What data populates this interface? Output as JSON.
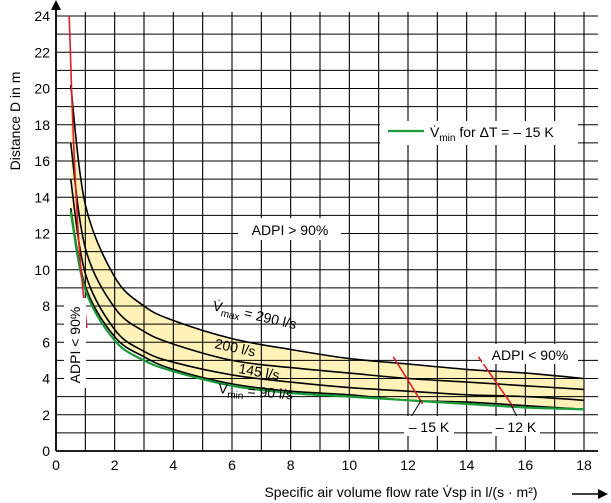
{
  "chart_data": {
    "type": "line",
    "xlabel": "Specific air volume flow rate V̇sp in l/(s · m²)",
    "ylabel": "Distance D in m",
    "xlim": [
      0,
      18
    ],
    "ylim": [
      0,
      24
    ],
    "x_ticks": [
      "0",
      "2",
      "4",
      "6",
      "8",
      "10",
      "12",
      "14",
      "16",
      "18"
    ],
    "y_ticks": [
      "0",
      "2",
      "4",
      "6",
      "8",
      "10",
      "12",
      "14",
      "16",
      "18",
      "20",
      "22",
      "24"
    ],
    "grid": true,
    "legend": {
      "position": "top-right",
      "text": "V̇min for ΔT = – 15 K"
    },
    "series": [
      {
        "name": "V̇max = 290 l/s",
        "color": "#000000",
        "x": [
          0.5,
          1,
          2,
          3,
          4,
          6,
          8,
          10,
          12,
          14,
          16,
          18
        ],
        "y": [
          20.2,
          13.6,
          9.6,
          8.0,
          7.2,
          6.2,
          5.6,
          5.1,
          4.8,
          4.5,
          4.3,
          4.0
        ]
      },
      {
        "name": "200 l/s",
        "color": "#000000",
        "x": [
          0.5,
          1,
          2,
          3,
          4,
          6,
          8,
          10,
          12,
          14,
          16,
          18
        ],
        "y": [
          17.0,
          11.2,
          7.9,
          6.6,
          5.9,
          5.0,
          4.6,
          4.3,
          4.0,
          3.8,
          3.6,
          3.4
        ]
      },
      {
        "name": "145 l/s",
        "color": "#000000",
        "x": [
          0.5,
          1,
          2,
          3,
          4,
          6,
          8,
          10,
          12,
          14,
          16,
          18
        ],
        "y": [
          15.0,
          9.8,
          6.7,
          5.5,
          4.9,
          4.2,
          3.8,
          3.5,
          3.3,
          3.1,
          3.0,
          2.8
        ]
      },
      {
        "name": "V̇min = 90 l/s",
        "color": "#000000",
        "x": [
          0.5,
          1,
          2,
          3,
          4,
          6,
          8,
          10,
          12,
          14,
          16,
          18
        ],
        "y": [
          13.4,
          9.1,
          6.3,
          5.2,
          4.5,
          3.7,
          3.3,
          3.1,
          2.8,
          2.7,
          2.5,
          2.3
        ]
      },
      {
        "name": "V̇min for ΔT = – 15 K",
        "color": "#1a9a3a",
        "x": [
          0.5,
          1,
          2,
          3,
          4,
          6,
          8,
          10,
          12,
          14,
          16,
          18
        ],
        "y": [
          13.2,
          8.9,
          6.1,
          5.0,
          4.4,
          3.6,
          3.2,
          3.0,
          2.8,
          2.6,
          2.4,
          2.3
        ]
      }
    ],
    "shaded_region": {
      "label": "ADPI > 90%",
      "fill": "#fff2b8",
      "between": [
        "V̇max = 290 l/s",
        "V̇min = 90 l/s"
      ]
    },
    "boundaries": [
      {
        "label": "ADPI < 90%",
        "color": "#d8202a",
        "x": [
          0.45,
          0.6,
          0.8,
          1.05
        ],
        "y": [
          24.0,
          17.0,
          11.0,
          6.8
        ]
      },
      {
        "label": "– 15 K",
        "color": "#d8202a",
        "x": [
          11.5,
          12.5
        ],
        "y": [
          5.2,
          2.6
        ]
      },
      {
        "label": "– 12 K",
        "color": "#d8202a",
        "x": [
          14.4,
          15.6
        ],
        "y": [
          5.2,
          2.4
        ]
      }
    ],
    "annotations": {
      "adpi_high": "ADPI > 90%",
      "adpi_low_left": "ADPI < 90%",
      "adpi_low_right": "ADPI < 90%",
      "minus15": "– 15 K",
      "minus12": "– 12 K",
      "vmax_sym": "V̇",
      "vmax_sub": "max",
      "vmax_rest": " = 290 l/s",
      "v200": "200 l/s",
      "v145": "145 l/s",
      "vmin_sym": "V̇",
      "vmin_sub": "min",
      "vmin_rest": " = 90 l/s",
      "legend_sym": "V̇",
      "legend_sub": "min",
      "legend_rest": " for ΔT = – 15 K"
    }
  }
}
